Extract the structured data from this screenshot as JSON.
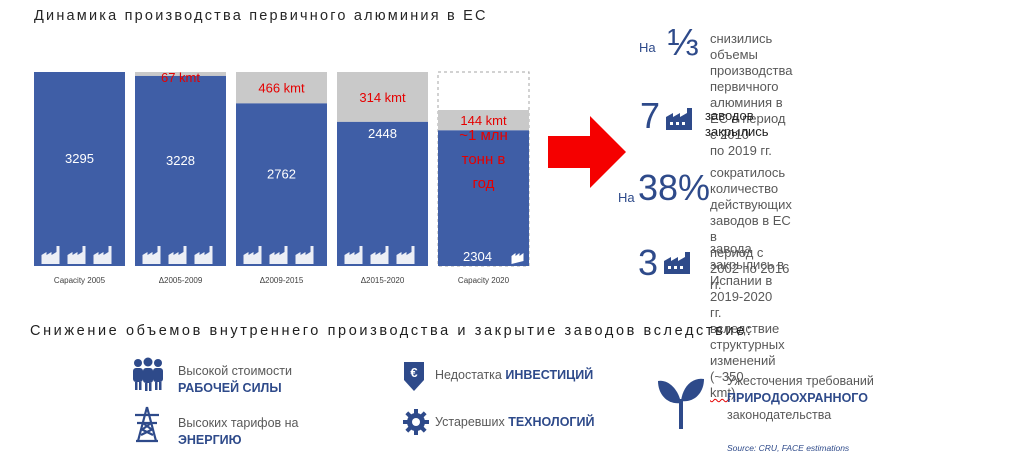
{
  "title": "Динамика производства первичного алюминия в ЕС",
  "chart_data": {
    "type": "bar",
    "categories": [
      "Capacity 2005",
      "Δ2005-2009",
      "Δ2009-2015",
      "Δ2015-2020",
      "Capacity 2020"
    ],
    "remaining": [
      3295,
      3228,
      2762,
      2448,
      2304
    ],
    "losses": [
      null,
      "67 kmt",
      "466 kmt",
      "314 kmt",
      "144 kmt"
    ],
    "value_labels": [
      "3295",
      "3228",
      "2762",
      "2448",
      "2304"
    ],
    "total_loss_label": [
      "~1 млн",
      "тонн в",
      "год"
    ],
    "ylim": [
      0,
      3295
    ],
    "colors": {
      "bar": "#3f5ea6",
      "loss": "#c9c9c9",
      "loss_text": "#e50000",
      "arrow": "#f50000"
    }
  },
  "stats": [
    {
      "prefix": "На",
      "big": "⅓",
      "desc": [
        "снизились объемы",
        "производства первичного",
        "алюминия в ЕС в период с 2010",
        "по 2019 гг."
      ]
    },
    {
      "prefix": "",
      "big": "7",
      "icon": "factory-icon",
      "desc": [
        "заводов закрылись"
      ]
    },
    {
      "prefix": "На",
      "big": "38%",
      "desc": [
        "сократилось количество",
        "действующих заводов в ЕС в",
        "период с 2002 по 2016 гг."
      ]
    },
    {
      "prefix": "",
      "big": "3",
      "icon": "factory-icon",
      "desc": [
        "завода закрылись в Испании в",
        "2019-2020 гг. вследствие",
        "структурных изменений (~350",
        "kmt)"
      ]
    }
  ],
  "subtitle": "Снижение объемов внутреннего производства и закрытие заводов вследствие:",
  "reasons": [
    {
      "icon": "workers-icon",
      "normal": "Высокой стоимости",
      "bold": "РАБОЧЕЙ СИЛЫ"
    },
    {
      "icon": "power-tower-icon",
      "normal": "Высоких тарифов на",
      "bold": "ЭНЕРГИЮ"
    },
    {
      "icon": "euro-down-icon",
      "normal": "Недостатка",
      "bold": "ИНВЕСТИЦИЙ"
    },
    {
      "icon": "gear-icon",
      "normal": "Устаревших",
      "bold": "ТЕХНОЛОГИЙ"
    },
    {
      "icon": "sprout-icon",
      "normal": "Ужесточения требований",
      "bold": "ПРИРОДООХРАННОГО",
      "tail": "законодательства"
    }
  ],
  "source": "Source: CRU, FACE estimations"
}
